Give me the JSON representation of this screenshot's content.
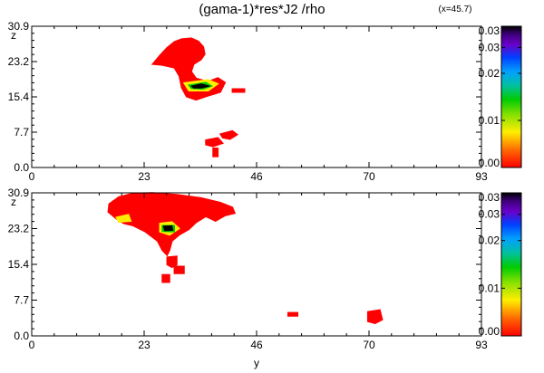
{
  "figure": {
    "title": "(gama-1)*res*J2 /rho",
    "annotation": "(x=45.7)"
  },
  "chart_data": [
    {
      "type": "heatmap",
      "xlabel": "",
      "ylabel": "z",
      "xlim": [
        0,
        93
      ],
      "ylim": [
        0,
        30.9
      ],
      "xticks": [
        "0",
        "23",
        "46",
        "70",
        "93"
      ],
      "yticks": [
        "0.0",
        "7.7",
        "15.4",
        "23.2",
        "30.9"
      ],
      "colorbar": {
        "min": 0.0,
        "max": 0.03,
        "ticks": [
          "0.00",
          "0.01",
          "0.02",
          "0.03",
          "0.03"
        ]
      },
      "regions": [
        {
          "level": 0.002,
          "polygon": [
            [
              25,
              22.6
            ],
            [
              26.5,
              24.5
            ],
            [
              28,
              26.2
            ],
            [
              29.5,
              27.5
            ],
            [
              31,
              28.1
            ],
            [
              33,
              28.3
            ],
            [
              34.5,
              27.6
            ],
            [
              35.5,
              26.4
            ],
            [
              35.8,
              24.8
            ],
            [
              35,
              23.6
            ],
            [
              33.5,
              22.6
            ],
            [
              33,
              21
            ],
            [
              34,
              19.5
            ],
            [
              36.5,
              18.8
            ],
            [
              38.5,
              19.6
            ],
            [
              40,
              18.6
            ],
            [
              39,
              16.5
            ],
            [
              36,
              15.5
            ],
            [
              34,
              14.8
            ],
            [
              32,
              15.5
            ],
            [
              31,
              17.5
            ],
            [
              30.5,
              20
            ],
            [
              29.5,
              21.8
            ],
            [
              27,
              22.4
            ]
          ]
        },
        {
          "level": 0.002,
          "polygon": [
            [
              41.5,
              17.2
            ],
            [
              44,
              17.2
            ],
            [
              44,
              16.5
            ],
            [
              41.5,
              16.5
            ]
          ]
        },
        {
          "level": 0.002,
          "polygon": [
            [
              39,
              7.3
            ],
            [
              41.5,
              8
            ],
            [
              42.5,
              7.2
            ],
            [
              41,
              6.2
            ],
            [
              39.5,
              6.5
            ]
          ]
        },
        {
          "level": 0.002,
          "polygon": [
            [
              36,
              6
            ],
            [
              38.5,
              6.5
            ],
            [
              39.5,
              5.3
            ],
            [
              37.5,
              4.6
            ],
            [
              36,
              5
            ]
          ]
        },
        {
          "level": 0.002,
          "polygon": [
            [
              37.5,
              4.2
            ],
            [
              38.5,
              4.2
            ],
            [
              38.5,
              2.4
            ],
            [
              37.5,
              2.4
            ]
          ]
        },
        {
          "level": 0.008,
          "polygon": [
            [
              31.5,
              18.5
            ],
            [
              36.5,
              19.2
            ],
            [
              38.5,
              18.3
            ],
            [
              36.5,
              16.8
            ],
            [
              32.5,
              16.8
            ]
          ]
        },
        {
          "level": 0.012,
          "polygon": [
            [
              32.5,
              18
            ],
            [
              36,
              18.6
            ],
            [
              37.2,
              17.8
            ],
            [
              35.5,
              17.2
            ],
            [
              33,
              17.3
            ]
          ]
        },
        {
          "level": 0.03,
          "polygon": [
            [
              33,
              17.8
            ],
            [
              35,
              18.3
            ],
            [
              36.8,
              17.8
            ],
            [
              35,
              17.4
            ],
            [
              33.5,
              17.4
            ]
          ]
        }
      ]
    },
    {
      "type": "heatmap",
      "xlabel": "y",
      "ylabel": "z",
      "xlim": [
        0,
        93
      ],
      "ylim": [
        0,
        30.9
      ],
      "xticks": [
        "0",
        "23",
        "46",
        "70",
        "93"
      ],
      "yticks": [
        "0.0",
        "7.7",
        "15.4",
        "23.2",
        "30.9"
      ],
      "colorbar": {
        "min": 0.0,
        "max": 0.03,
        "ticks": [
          "0.00",
          "0.01",
          "0.02",
          "0.03",
          "0.03"
        ]
      },
      "regions": [
        {
          "level": 0.002,
          "polygon": [
            [
              16,
              28.5
            ],
            [
              18,
              30
            ],
            [
              21,
              30.8
            ],
            [
              25,
              30.9
            ],
            [
              30,
              30.5
            ],
            [
              35,
              29.8
            ],
            [
              39,
              28.8
            ],
            [
              41.5,
              27.8
            ],
            [
              42,
              26.5
            ],
            [
              40,
              26
            ],
            [
              38,
              24.8
            ],
            [
              36,
              25.8
            ],
            [
              34,
              24.5
            ],
            [
              32.5,
              23
            ],
            [
              30.5,
              21.8
            ],
            [
              29,
              20.5
            ],
            [
              28.5,
              18.5
            ],
            [
              28,
              17.4
            ],
            [
              27,
              18.5
            ],
            [
              26,
              20.5
            ],
            [
              23.5,
              22.5
            ],
            [
              21,
              23.8
            ],
            [
              19,
              24.3
            ],
            [
              17.5,
              25.3
            ],
            [
              15.8,
              26.8
            ]
          ]
        },
        {
          "level": 0.002,
          "polygon": [
            [
              28,
              17
            ],
            [
              30,
              17.2
            ],
            [
              30,
              15.4
            ],
            [
              29,
              14.8
            ],
            [
              28,
              15.4
            ]
          ]
        },
        {
          "level": 0.002,
          "polygon": [
            [
              29.5,
              15
            ],
            [
              31.5,
              15
            ],
            [
              31.5,
              13.5
            ],
            [
              29.5,
              13.5
            ]
          ]
        },
        {
          "level": 0.002,
          "polygon": [
            [
              27,
              13.2
            ],
            [
              28.5,
              13.2
            ],
            [
              28.5,
              11.6
            ],
            [
              27,
              11.6
            ]
          ]
        },
        {
          "level": 0.002,
          "polygon": [
            [
              53,
              5
            ],
            [
              55,
              5
            ],
            [
              55,
              4.3
            ],
            [
              53,
              4.3
            ]
          ]
        },
        {
          "level": 0.002,
          "polygon": [
            [
              69.5,
              5.2
            ],
            [
              72,
              5.6
            ],
            [
              72.5,
              3.5
            ],
            [
              71,
              2.7
            ],
            [
              69.5,
              3.1
            ]
          ]
        },
        {
          "level": 0.008,
          "polygon": [
            [
              17.5,
              25.6
            ],
            [
              20,
              26.2
            ],
            [
              20.5,
              24.8
            ],
            [
              18,
              24.6
            ]
          ]
        },
        {
          "level": 0.008,
          "polygon": [
            [
              26.5,
              24.3
            ],
            [
              29,
              24.6
            ],
            [
              30.5,
              23.2
            ],
            [
              28.5,
              21.8
            ],
            [
              26.5,
              22.5
            ]
          ]
        },
        {
          "level": 0.012,
          "polygon": [
            [
              27,
              23.8
            ],
            [
              29.5,
              23.8
            ],
            [
              29.5,
              22.5
            ],
            [
              27,
              22.6
            ]
          ]
        },
        {
          "level": 0.03,
          "polygon": [
            [
              27.2,
              23.7
            ],
            [
              29,
              23.8
            ],
            [
              29.2,
              22.8
            ],
            [
              27.5,
              22.7
            ]
          ]
        }
      ]
    }
  ]
}
